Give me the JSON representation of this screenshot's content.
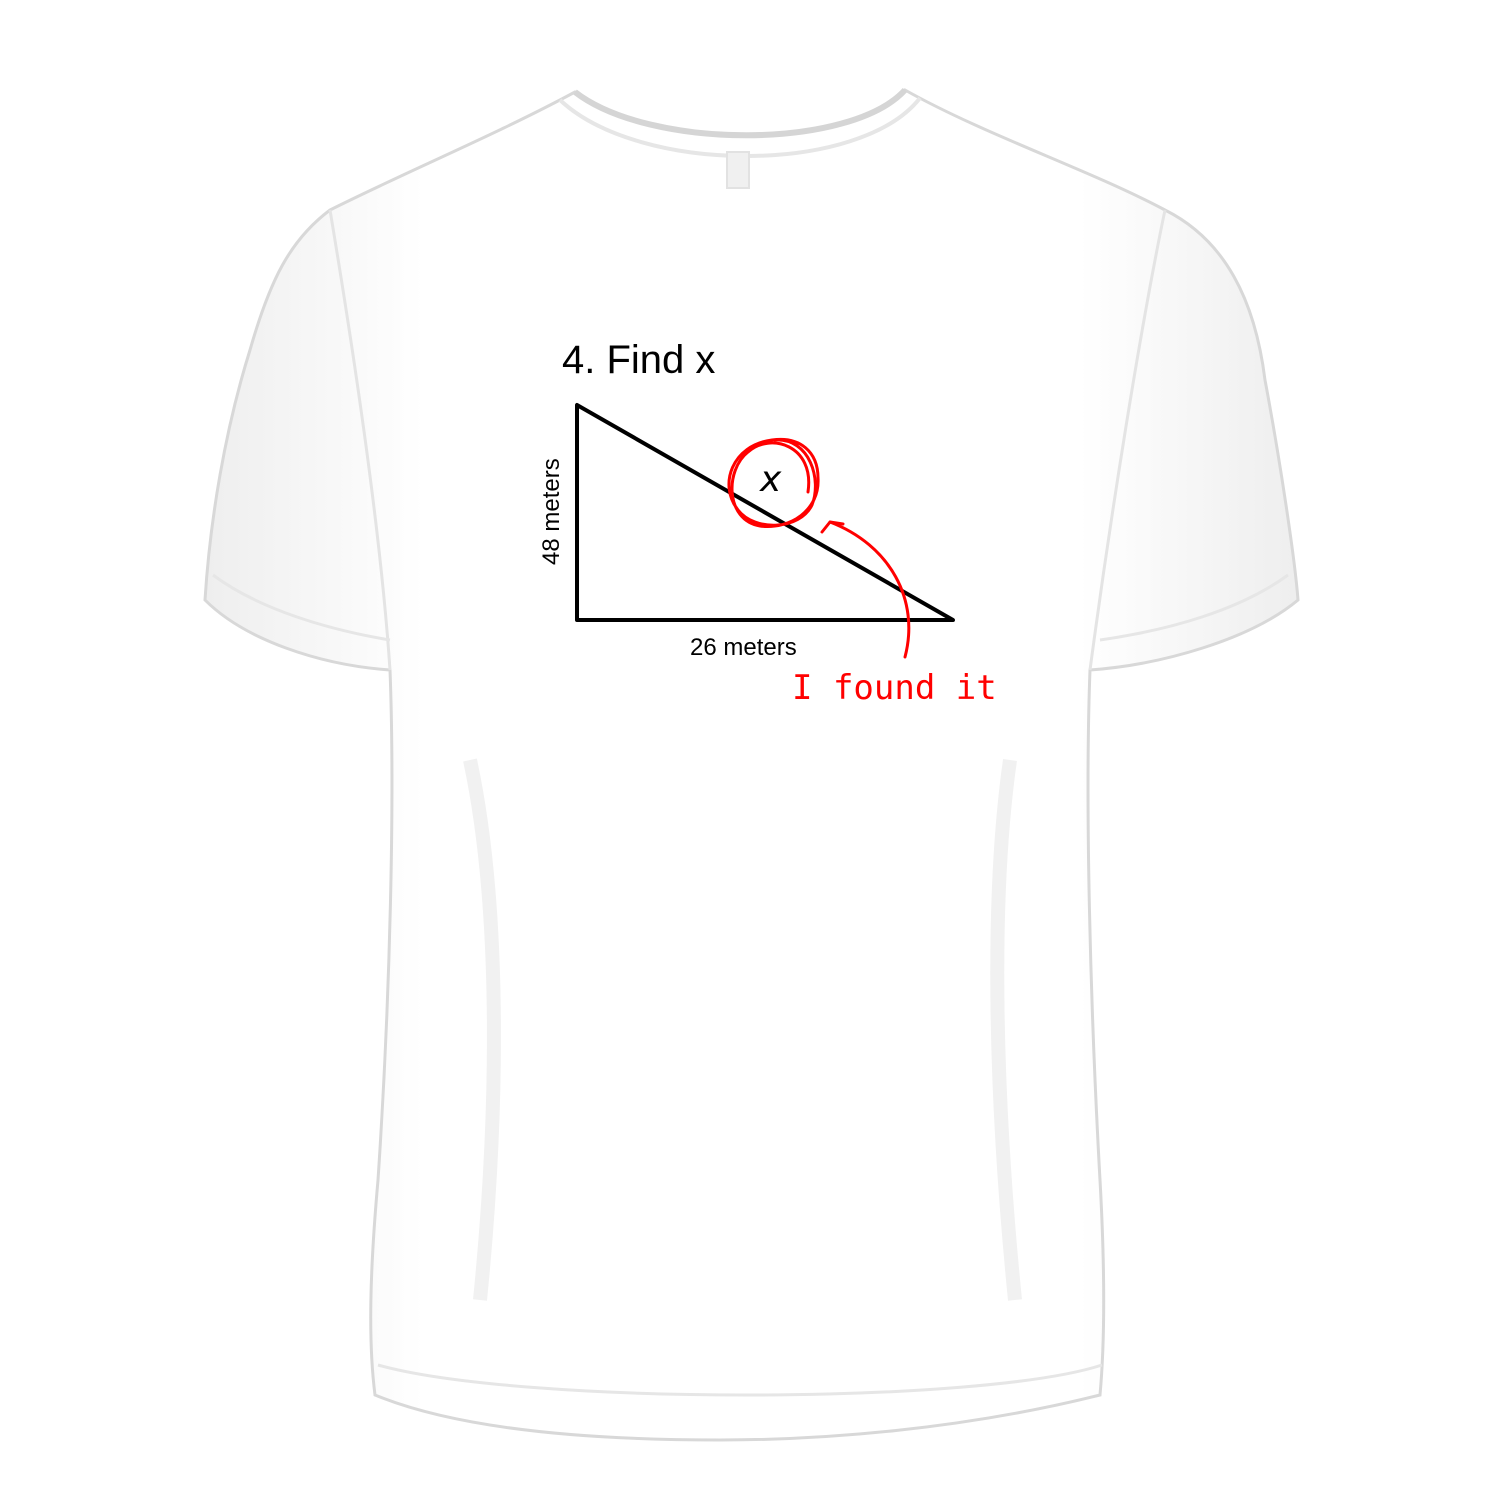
{
  "product": {
    "shirt_color": "#ffffff",
    "shadow_color": "#e4e4e4"
  },
  "print": {
    "title": "4. Find x",
    "side_label": "48 meters",
    "bottom_label": "26 meters",
    "variable": "x",
    "answer": "I found it",
    "ink_color": "#000000",
    "accent_color": "#ff0000"
  }
}
